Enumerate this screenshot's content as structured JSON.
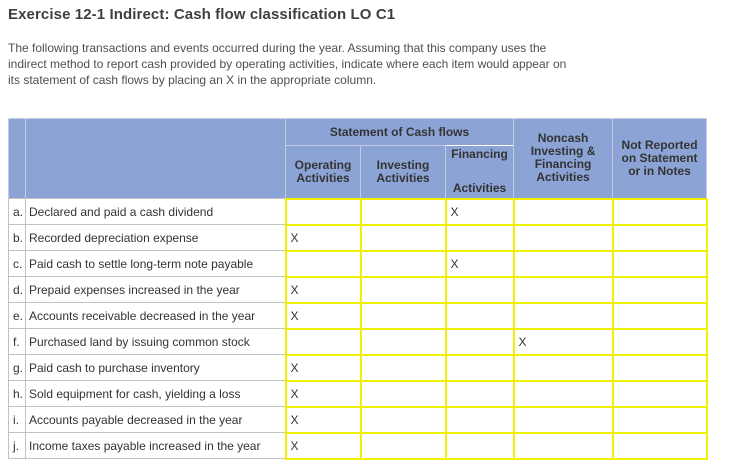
{
  "page": {
    "title": "Exercise 12-1 Indirect: Cash flow classification LO C1",
    "instructions_lines": [
      "The following transactions and events occurred during the year. Assuming that this company uses the",
      "indirect method to report cash provided by operating activities, indicate where each item would appear on",
      "its statement of cash flows by placing an X in the appropriate column."
    ]
  },
  "table": {
    "header": {
      "statement_group": "Statement of Cash flows",
      "operating": [
        "Operating",
        "Activities"
      ],
      "investing": [
        "Investing",
        "Activities"
      ],
      "financing": [
        "Financing",
        "Activities"
      ],
      "noncash": [
        "Noncash",
        "Investing &",
        "Financing",
        "Activities"
      ],
      "not_reported": [
        "Not Reported",
        "on Statement",
        "or in Notes"
      ]
    },
    "mark_symbol": "X",
    "rows": [
      {
        "letter": "a.",
        "text": "Declared and paid a cash dividend",
        "operating": "",
        "investing": "",
        "financing": "X",
        "noncash": "",
        "not_reported": ""
      },
      {
        "letter": "b.",
        "text": "Recorded depreciation expense",
        "operating": "X",
        "investing": "",
        "financing": "",
        "noncash": "",
        "not_reported": ""
      },
      {
        "letter": "c.",
        "text": "Paid cash to settle long-term note payable",
        "operating": "",
        "investing": "",
        "financing": "X",
        "noncash": "",
        "not_reported": ""
      },
      {
        "letter": "d.",
        "text": "Prepaid expenses increased in the year",
        "operating": "X",
        "investing": "",
        "financing": "",
        "noncash": "",
        "not_reported": ""
      },
      {
        "letter": "e.",
        "text": "Accounts receivable decreased in the year",
        "operating": "X",
        "investing": "",
        "financing": "",
        "noncash": "",
        "not_reported": ""
      },
      {
        "letter": "f.",
        "text": "Purchased land by issuing common stock",
        "operating": "",
        "investing": "",
        "financing": "",
        "noncash": "X",
        "not_reported": ""
      },
      {
        "letter": "g.",
        "text": "Paid cash to purchase inventory",
        "operating": "X",
        "investing": "",
        "financing": "",
        "noncash": "",
        "not_reported": ""
      },
      {
        "letter": "h.",
        "text": "Sold equipment for cash, yielding a loss",
        "operating": "X",
        "investing": "",
        "financing": "",
        "noncash": "",
        "not_reported": ""
      },
      {
        "letter": "i.",
        "text": "Accounts payable decreased in the year",
        "operating": "X",
        "investing": "",
        "financing": "",
        "noncash": "",
        "not_reported": ""
      },
      {
        "letter": "j.",
        "text": "Income taxes payable increased in the year",
        "operating": "X",
        "investing": "",
        "financing": "",
        "noncash": "",
        "not_reported": ""
      }
    ]
  },
  "colors": {
    "header_blue": "#8CA4D5",
    "header_border": "#C3CCE3",
    "answer_cell_border_yellow": "#F0F000",
    "grid_gray": "#C2C2C2"
  }
}
